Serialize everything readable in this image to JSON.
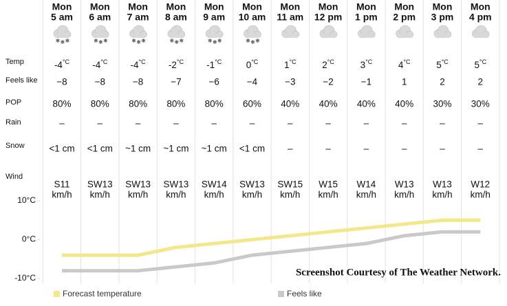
{
  "columns": [
    {
      "day": "Mon",
      "time": "5 am",
      "temp": "-4",
      "feels_like": "−8",
      "pop": "80%",
      "rain": "–",
      "snow": "<1 cm",
      "wind": "S11"
    },
    {
      "day": "Mon",
      "time": "6 am",
      "temp": "-4",
      "feels_like": "−8",
      "pop": "80%",
      "rain": "–",
      "snow": "<1 cm",
      "wind": "SW13"
    },
    {
      "day": "Mon",
      "time": "7 am",
      "temp": "-4",
      "feels_like": "−8",
      "pop": "80%",
      "rain": "–",
      "snow": "~1 cm",
      "wind": "SW13"
    },
    {
      "day": "Mon",
      "time": "8 am",
      "temp": "-2",
      "feels_like": "−7",
      "pop": "80%",
      "rain": "–",
      "snow": "~1 cm",
      "wind": "SW13"
    },
    {
      "day": "Mon",
      "time": "9 am",
      "temp": "-1",
      "feels_like": "−6",
      "pop": "80%",
      "rain": "–",
      "snow": "~1 cm",
      "wind": "SW14"
    },
    {
      "day": "Mon",
      "time": "10 am",
      "temp": "0",
      "feels_like": "−4",
      "pop": "60%",
      "rain": "–",
      "snow": "<1 cm",
      "wind": "SW13"
    },
    {
      "day": "Mon",
      "time": "11 am",
      "temp": "1",
      "feels_like": "−3",
      "pop": "40%",
      "rain": "–",
      "snow": "–",
      "wind": "SW15"
    },
    {
      "day": "Mon",
      "time": "12 pm",
      "temp": "2",
      "feels_like": "−2",
      "pop": "40%",
      "rain": "–",
      "snow": "–",
      "wind": "W15"
    },
    {
      "day": "Mon",
      "time": "1 pm",
      "temp": "3",
      "feels_like": "−1",
      "pop": "40%",
      "rain": "–",
      "snow": "–",
      "wind": "W14"
    },
    {
      "day": "Mon",
      "time": "2 pm",
      "temp": "4",
      "feels_like": "1",
      "pop": "40%",
      "rain": "–",
      "snow": "–",
      "wind": "W13"
    },
    {
      "day": "Mon",
      "time": "3 pm",
      "temp": "5",
      "feels_like": "2",
      "pop": "30%",
      "rain": "–",
      "snow": "–",
      "wind": "W13"
    },
    {
      "day": "Mon",
      "time": "4 pm",
      "temp": "5",
      "feels_like": "2",
      "pop": "30%",
      "rain": "–",
      "snow": "–",
      "wind": "W12"
    }
  ],
  "row_labels": {
    "temp": "Temp",
    "feels_like": "Feels like",
    "pop": "POP",
    "rain": "Rain",
    "snow": "Snow",
    "wind": "Wind"
  },
  "temp_unit": "°C",
  "wind_unit": "km/h",
  "chart_data": {
    "type": "line",
    "series": [
      {
        "name": "Forecast temperature",
        "color": "#f2e88a",
        "values": [
          -4,
          -4,
          -4,
          -2,
          -1,
          0,
          1,
          2,
          3,
          4,
          5,
          5
        ]
      },
      {
        "name": "Feels like",
        "color": "#c9c9c9",
        "values": [
          -8,
          -8,
          -8,
          -7,
          -6,
          -4,
          -3,
          -2,
          -1,
          1,
          2,
          2
        ]
      }
    ],
    "ylim": [
      -10,
      10
    ],
    "yticks": [
      {
        "value": 10,
        "label": "10°C"
      },
      {
        "value": 0,
        "label": "0°C"
      },
      {
        "value": -10,
        "label": "-10°C"
      }
    ]
  },
  "watermark": "Screenshot Courtesy of The Weather Network."
}
